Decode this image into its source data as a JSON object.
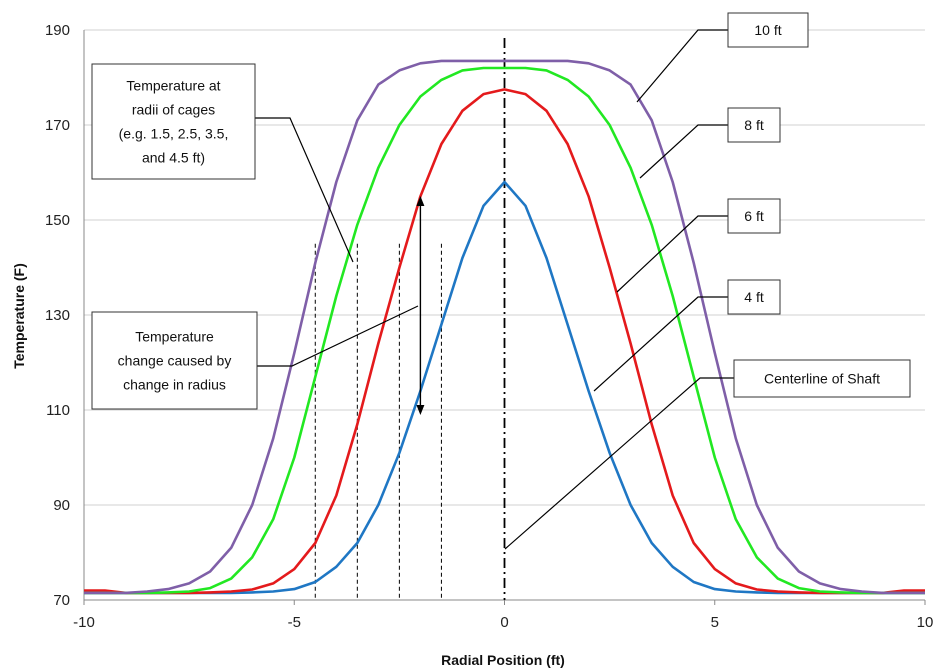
{
  "chart_data": {
    "type": "line",
    "xlabel": "Radial Position (ft)",
    "ylabel": "Temperature (F)",
    "xlim": [
      -10,
      10
    ],
    "ylim": [
      70,
      190
    ],
    "x_ticks": [
      "-10",
      "-5",
      "0",
      "5",
      "10"
    ],
    "y_ticks": [
      "70",
      "90",
      "110",
      "130",
      "150",
      "170",
      "190"
    ],
    "grid": "horizontal",
    "x": [
      -10,
      -9.5,
      -9,
      -8.5,
      -8,
      -7.5,
      -7,
      -6.5,
      -6,
      -5.5,
      -5,
      -4.5,
      -4,
      -3.5,
      -3,
      -2.5,
      -2,
      -1.5,
      -1,
      -0.5,
      0,
      0.5,
      1,
      1.5,
      2,
      2.5,
      3,
      3.5,
      4,
      4.5,
      5,
      5.5,
      6,
      6.5,
      7,
      7.5,
      8,
      8.5,
      9,
      9.5,
      10
    ],
    "series": [
      {
        "name": "4 ft",
        "color": "#1f77c4",
        "values": [
          71.5,
          71.5,
          71.5,
          71.5,
          71.5,
          71.5,
          71.5,
          71.5,
          71.6,
          71.8,
          72.3,
          73.8,
          77.0,
          82.0,
          90.0,
          101.0,
          114.0,
          128.0,
          142.0,
          153.0,
          158.0,
          153.0,
          142.0,
          128.0,
          114.0,
          101.0,
          90.0,
          82.0,
          77.0,
          73.8,
          72.3,
          71.8,
          71.6,
          71.5,
          71.5,
          71.5,
          71.5,
          71.5,
          71.5,
          71.5,
          71.5
        ]
      },
      {
        "name": "6 ft",
        "color": "#e41a1c",
        "values": [
          72.0,
          72.0,
          71.5,
          71.5,
          71.5,
          71.5,
          71.6,
          71.8,
          72.2,
          73.5,
          76.5,
          82.0,
          92.0,
          107.0,
          124.0,
          140.0,
          155.0,
          166.0,
          173.0,
          176.5,
          177.5,
          176.5,
          173.0,
          166.0,
          155.0,
          140.0,
          124.0,
          107.0,
          92.0,
          82.0,
          76.5,
          73.5,
          72.2,
          71.8,
          71.6,
          71.5,
          71.5,
          71.5,
          71.5,
          72.0,
          72.0
        ]
      },
      {
        "name": "8 ft",
        "color": "#22e822",
        "values": [
          71.5,
          71.5,
          71.5,
          71.5,
          71.6,
          71.8,
          72.5,
          74.5,
          79.0,
          87.0,
          100.0,
          117.0,
          134.0,
          149.0,
          161.0,
          170.0,
          176.0,
          179.5,
          181.5,
          182.0,
          182.0,
          182.0,
          181.5,
          179.5,
          176.0,
          170.0,
          161.0,
          149.0,
          134.0,
          117.0,
          100.0,
          87.0,
          79.0,
          74.5,
          72.5,
          71.8,
          71.6,
          71.5,
          71.5,
          71.5,
          71.5
        ]
      },
      {
        "name": "10 ft",
        "color": "#7f5fa8",
        "values": [
          71.5,
          71.5,
          71.5,
          71.8,
          72.3,
          73.5,
          76.0,
          81.0,
          90.0,
          104.0,
          122.0,
          141.0,
          158.0,
          171.0,
          178.5,
          181.5,
          183.0,
          183.5,
          183.5,
          183.5,
          183.5,
          183.5,
          183.5,
          183.5,
          183.0,
          181.5,
          178.5,
          171.0,
          158.0,
          141.0,
          122.0,
          104.0,
          90.0,
          81.0,
          76.0,
          73.5,
          72.3,
          71.8,
          71.5,
          71.5,
          71.5
        ]
      }
    ],
    "annotations": [
      {
        "id": "cages",
        "lines": [
          "Temperature at",
          "radii of cages",
          "(e.g. 1.5, 2.5, 3.5,",
          "and 4.5 ft)"
        ]
      },
      {
        "id": "change",
        "lines": [
          "Temperature",
          "change caused by",
          "change in radius"
        ]
      },
      {
        "id": "c10",
        "lines": [
          "10 ft"
        ]
      },
      {
        "id": "c8",
        "lines": [
          "8 ft"
        ]
      },
      {
        "id": "c6",
        "lines": [
          "6 ft"
        ]
      },
      {
        "id": "c4",
        "lines": [
          "4 ft"
        ]
      },
      {
        "id": "shaft",
        "lines": [
          "Centerline of Shaft"
        ]
      }
    ],
    "cage_radii": [
      -4.5,
      -3.5,
      -2.5,
      -1.5
    ],
    "centerline_x": 0,
    "change_arrow": {
      "x": -2,
      "y_from": 110,
      "y_to": 154
    }
  }
}
